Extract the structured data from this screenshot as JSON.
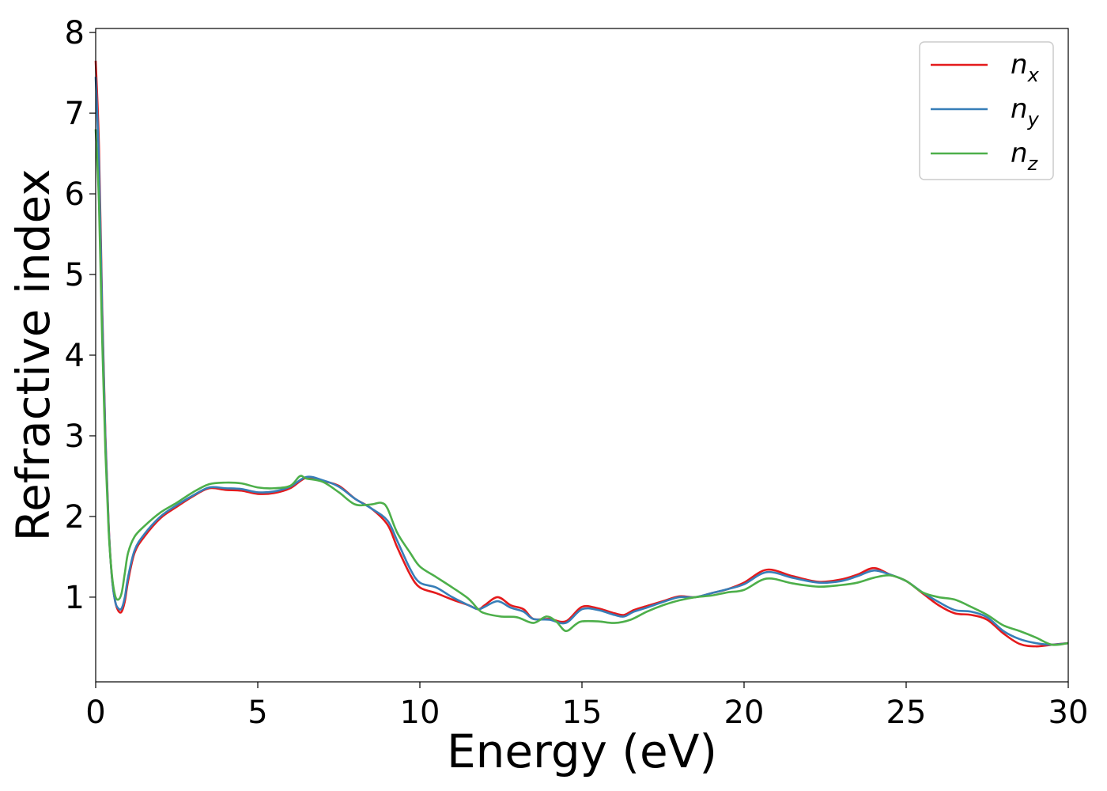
{
  "chart_data": {
    "type": "line",
    "xlabel": "Energy (eV)",
    "ylabel": "Refractive index",
    "xlim": [
      0,
      30
    ],
    "ylim": [
      0,
      8
    ],
    "xticks": [
      0,
      5,
      10,
      15,
      20,
      25,
      30
    ],
    "yticks": [
      1,
      2,
      3,
      4,
      5,
      6,
      7,
      8
    ],
    "grid": false,
    "legend_position": "top-right",
    "series": [
      {
        "name": "n",
        "sub": "x",
        "color": "#e41a1c",
        "points": [
          [
            0.0,
            7.65
          ],
          [
            0.1,
            6.6
          ],
          [
            0.2,
            4.6
          ],
          [
            0.3,
            3.0
          ],
          [
            0.4,
            1.9
          ],
          [
            0.5,
            1.25
          ],
          [
            0.6,
            0.95
          ],
          [
            0.7,
            0.83
          ],
          [
            0.8,
            0.82
          ],
          [
            0.9,
            0.95
          ],
          [
            1.0,
            1.2
          ],
          [
            1.2,
            1.55
          ],
          [
            1.5,
            1.75
          ],
          [
            2.0,
            1.98
          ],
          [
            2.5,
            2.12
          ],
          [
            3.0,
            2.25
          ],
          [
            3.5,
            2.35
          ],
          [
            4.0,
            2.33
          ],
          [
            4.5,
            2.32
          ],
          [
            5.0,
            2.28
          ],
          [
            5.5,
            2.29
          ],
          [
            6.0,
            2.35
          ],
          [
            6.5,
            2.48
          ],
          [
            7.0,
            2.44
          ],
          [
            7.5,
            2.38
          ],
          [
            8.0,
            2.22
          ],
          [
            8.5,
            2.1
          ],
          [
            9.0,
            1.9
          ],
          [
            9.3,
            1.62
          ],
          [
            9.7,
            1.28
          ],
          [
            10.0,
            1.12
          ],
          [
            10.5,
            1.05
          ],
          [
            11.0,
            0.97
          ],
          [
            11.5,
            0.9
          ],
          [
            11.8,
            0.85
          ],
          [
            12.0,
            0.9
          ],
          [
            12.4,
            1.0
          ],
          [
            12.8,
            0.9
          ],
          [
            13.2,
            0.85
          ],
          [
            13.5,
            0.73
          ],
          [
            14.0,
            0.73
          ],
          [
            14.5,
            0.7
          ],
          [
            15.0,
            0.88
          ],
          [
            15.5,
            0.86
          ],
          [
            16.0,
            0.8
          ],
          [
            16.3,
            0.78
          ],
          [
            16.6,
            0.84
          ],
          [
            17.0,
            0.89
          ],
          [
            17.5,
            0.95
          ],
          [
            18.0,
            1.01
          ],
          [
            18.5,
            1.0
          ],
          [
            19.0,
            1.05
          ],
          [
            19.5,
            1.1
          ],
          [
            20.0,
            1.18
          ],
          [
            20.7,
            1.34
          ],
          [
            21.5,
            1.26
          ],
          [
            22.3,
            1.19
          ],
          [
            23.0,
            1.22
          ],
          [
            23.5,
            1.28
          ],
          [
            24.0,
            1.36
          ],
          [
            24.5,
            1.28
          ],
          [
            25.0,
            1.2
          ],
          [
            25.5,
            1.05
          ],
          [
            26.0,
            0.9
          ],
          [
            26.5,
            0.8
          ],
          [
            27.0,
            0.78
          ],
          [
            27.5,
            0.72
          ],
          [
            28.0,
            0.55
          ],
          [
            28.5,
            0.42
          ],
          [
            29.0,
            0.39
          ],
          [
            29.5,
            0.41
          ],
          [
            30.0,
            0.43
          ]
        ]
      },
      {
        "name": "n",
        "sub": "y",
        "color": "#377eb8",
        "points": [
          [
            0.0,
            7.45
          ],
          [
            0.1,
            6.4
          ],
          [
            0.2,
            4.5
          ],
          [
            0.3,
            2.95
          ],
          [
            0.4,
            1.88
          ],
          [
            0.5,
            1.25
          ],
          [
            0.6,
            0.95
          ],
          [
            0.7,
            0.86
          ],
          [
            0.8,
            0.86
          ],
          [
            0.9,
            1.0
          ],
          [
            1.0,
            1.25
          ],
          [
            1.2,
            1.58
          ],
          [
            1.5,
            1.78
          ],
          [
            2.0,
            2.0
          ],
          [
            2.5,
            2.14
          ],
          [
            3.0,
            2.26
          ],
          [
            3.5,
            2.36
          ],
          [
            4.0,
            2.35
          ],
          [
            4.5,
            2.34
          ],
          [
            5.0,
            2.3
          ],
          [
            5.5,
            2.31
          ],
          [
            6.0,
            2.37
          ],
          [
            6.5,
            2.49
          ],
          [
            7.0,
            2.45
          ],
          [
            7.5,
            2.37
          ],
          [
            8.0,
            2.22
          ],
          [
            8.5,
            2.1
          ],
          [
            9.0,
            1.95
          ],
          [
            9.3,
            1.7
          ],
          [
            9.7,
            1.35
          ],
          [
            10.0,
            1.18
          ],
          [
            10.5,
            1.12
          ],
          [
            11.0,
            1.0
          ],
          [
            11.5,
            0.9
          ],
          [
            11.8,
            0.85
          ],
          [
            12.0,
            0.88
          ],
          [
            12.4,
            0.95
          ],
          [
            12.8,
            0.87
          ],
          [
            13.2,
            0.82
          ],
          [
            13.5,
            0.73
          ],
          [
            14.0,
            0.72
          ],
          [
            14.5,
            0.68
          ],
          [
            15.0,
            0.85
          ],
          [
            15.5,
            0.84
          ],
          [
            16.0,
            0.78
          ],
          [
            16.3,
            0.76
          ],
          [
            16.6,
            0.82
          ],
          [
            17.0,
            0.87
          ],
          [
            17.5,
            0.94
          ],
          [
            18.0,
            1.0
          ],
          [
            18.5,
            1.0
          ],
          [
            19.0,
            1.05
          ],
          [
            19.5,
            1.1
          ],
          [
            20.0,
            1.16
          ],
          [
            20.7,
            1.31
          ],
          [
            21.5,
            1.24
          ],
          [
            22.3,
            1.18
          ],
          [
            23.0,
            1.2
          ],
          [
            23.5,
            1.26
          ],
          [
            24.0,
            1.33
          ],
          [
            24.5,
            1.28
          ],
          [
            25.0,
            1.2
          ],
          [
            25.5,
            1.06
          ],
          [
            26.0,
            0.94
          ],
          [
            26.5,
            0.84
          ],
          [
            27.0,
            0.82
          ],
          [
            27.5,
            0.75
          ],
          [
            28.0,
            0.58
          ],
          [
            28.5,
            0.48
          ],
          [
            29.0,
            0.43
          ],
          [
            29.5,
            0.41
          ],
          [
            30.0,
            0.43
          ]
        ]
      },
      {
        "name": "n",
        "sub": "z",
        "color": "#4daf4a",
        "points": [
          [
            0.0,
            6.8
          ],
          [
            0.1,
            5.9
          ],
          [
            0.2,
            4.2
          ],
          [
            0.3,
            2.8
          ],
          [
            0.4,
            1.82
          ],
          [
            0.5,
            1.28
          ],
          [
            0.6,
            1.02
          ],
          [
            0.7,
            0.97
          ],
          [
            0.8,
            1.05
          ],
          [
            0.9,
            1.3
          ],
          [
            1.0,
            1.55
          ],
          [
            1.2,
            1.75
          ],
          [
            1.5,
            1.88
          ],
          [
            2.0,
            2.05
          ],
          [
            2.5,
            2.17
          ],
          [
            3.0,
            2.3
          ],
          [
            3.5,
            2.4
          ],
          [
            4.0,
            2.42
          ],
          [
            4.5,
            2.41
          ],
          [
            5.0,
            2.36
          ],
          [
            5.5,
            2.35
          ],
          [
            6.0,
            2.38
          ],
          [
            6.3,
            2.5
          ],
          [
            6.5,
            2.47
          ],
          [
            7.0,
            2.43
          ],
          [
            7.5,
            2.3
          ],
          [
            8.0,
            2.15
          ],
          [
            8.5,
            2.15
          ],
          [
            8.8,
            2.17
          ],
          [
            9.0,
            2.1
          ],
          [
            9.3,
            1.8
          ],
          [
            9.7,
            1.55
          ],
          [
            10.0,
            1.38
          ],
          [
            10.5,
            1.25
          ],
          [
            11.0,
            1.12
          ],
          [
            11.5,
            0.98
          ],
          [
            11.8,
            0.85
          ],
          [
            12.0,
            0.8
          ],
          [
            12.5,
            0.76
          ],
          [
            13.0,
            0.75
          ],
          [
            13.5,
            0.68
          ],
          [
            13.9,
            0.76
          ],
          [
            14.2,
            0.7
          ],
          [
            14.5,
            0.58
          ],
          [
            14.8,
            0.66
          ],
          [
            15.0,
            0.7
          ],
          [
            15.5,
            0.7
          ],
          [
            16.0,
            0.68
          ],
          [
            16.5,
            0.72
          ],
          [
            17.0,
            0.82
          ],
          [
            17.5,
            0.9
          ],
          [
            18.0,
            0.96
          ],
          [
            18.5,
            1.0
          ],
          [
            19.0,
            1.02
          ],
          [
            19.5,
            1.06
          ],
          [
            20.0,
            1.09
          ],
          [
            20.7,
            1.23
          ],
          [
            21.5,
            1.17
          ],
          [
            22.3,
            1.13
          ],
          [
            23.0,
            1.15
          ],
          [
            23.5,
            1.18
          ],
          [
            24.0,
            1.24
          ],
          [
            24.5,
            1.27
          ],
          [
            25.0,
            1.2
          ],
          [
            25.5,
            1.06
          ],
          [
            26.0,
            1.0
          ],
          [
            26.5,
            0.97
          ],
          [
            27.0,
            0.88
          ],
          [
            27.5,
            0.78
          ],
          [
            28.0,
            0.65
          ],
          [
            28.5,
            0.58
          ],
          [
            29.0,
            0.5
          ],
          [
            29.5,
            0.41
          ],
          [
            30.0,
            0.43
          ]
        ]
      }
    ]
  }
}
